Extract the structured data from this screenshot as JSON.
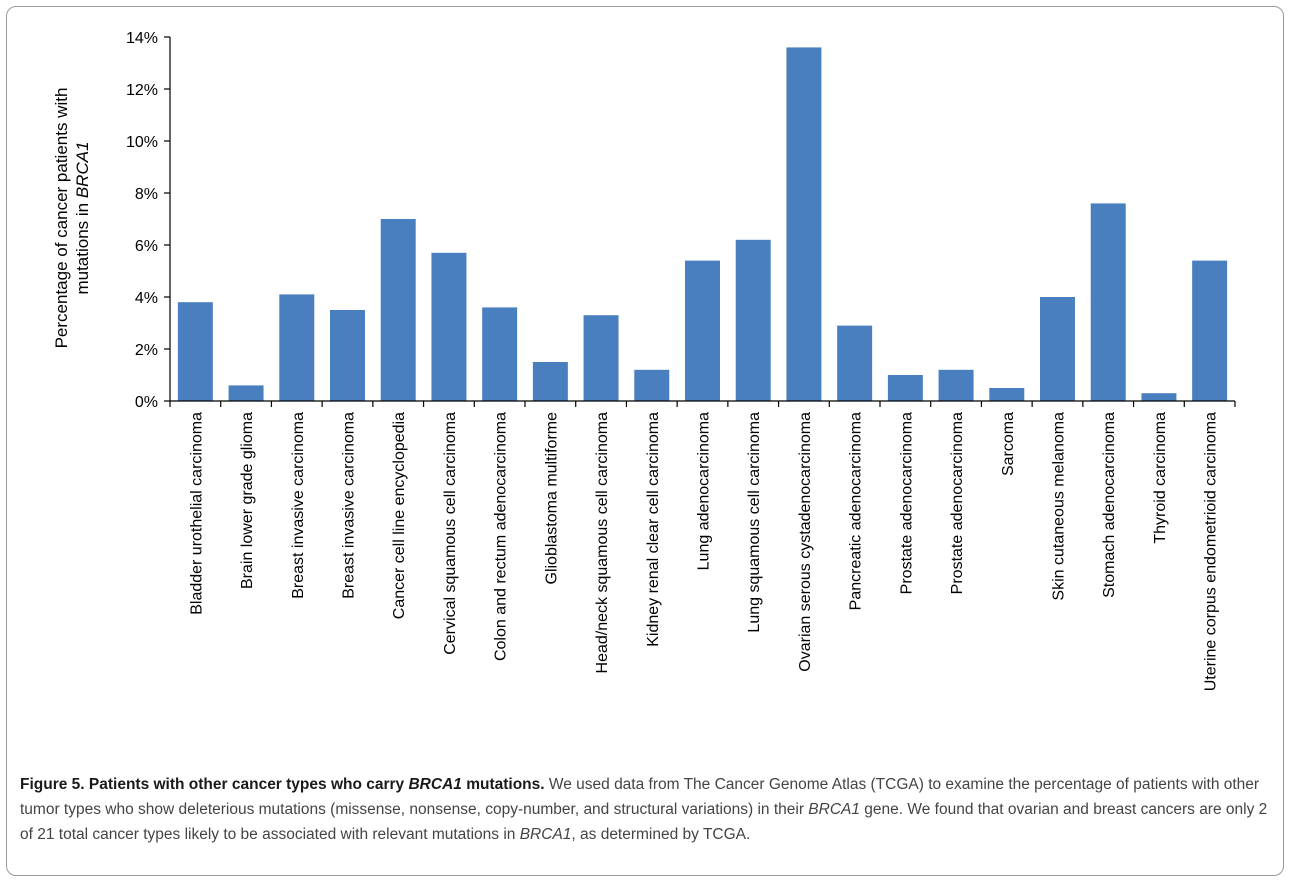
{
  "colors": {
    "bar": "#4a7fbf",
    "axis": "#000000",
    "frame": "#9a9a9a"
  },
  "chart_data": {
    "type": "bar",
    "ylabel_line1": "Percentage of cancer patients with",
    "ylabel_line2_prefix": "mutations in ",
    "ylabel_line2_gene": "BRCA1",
    "ylim": [
      0,
      14
    ],
    "yticks": [
      0,
      2,
      4,
      6,
      8,
      10,
      12,
      14
    ],
    "ytick_labels": [
      "0%",
      "2%",
      "4%",
      "6%",
      "8%",
      "10%",
      "12%",
      "14%"
    ],
    "grid": false,
    "categories": [
      "Bladder urothelial carcinoma",
      "Brain lower grade glioma",
      "Breast invasive carcinoma",
      "Breast invasive carcinoma",
      "Cancer cell line encyclopedia",
      "Cervical squamous cell carcinoma",
      "Colon and rectum adenocarcinoma",
      "Glioblastoma multiforme",
      "Head/neck squamous cell carcinoma",
      "Kidney renal clear cell carcinoma",
      "Lung adenocarcinoma",
      "Lung squamous cell carcinoma",
      "Ovarian serous cystadenocarcinoma",
      "Pancreatic adenocarcinoma",
      "Prostate adenocarcinoma",
      "Prostate adenocarcinoma",
      "Sarcoma",
      "Skin cutaneous melanoma",
      "Stomach adenocarcinoma",
      "Thyroid carcinoma",
      "Uterine corpus endometrioid carcinoma"
    ],
    "values": [
      3.8,
      0.6,
      4.1,
      3.5,
      7.0,
      5.7,
      3.6,
      1.5,
      3.3,
      1.2,
      5.4,
      6.2,
      13.6,
      2.9,
      1.0,
      1.2,
      0.5,
      4.0,
      7.6,
      0.3,
      5.4
    ]
  },
  "caption": {
    "title_part1": "Figure 5. Patients with other cancer types who carry ",
    "title_gene": "BRCA1",
    "title_part2": " mutations.",
    "text_part1": " We used data from The Cancer Genome Atlas (TCGA) to examine the percentage of patients with other tumor types who show deleterious mutations (missense, nonsense, copy-number, and structural variations) in their ",
    "text_gene1": "BRCA1",
    "text_part2": " gene. We found that ovarian and breast cancers are only 2 of 21 total cancer types likely to be associated with relevant mutations in ",
    "text_gene2": "BRCA1",
    "text_part3": ", as determined by TCGA."
  }
}
